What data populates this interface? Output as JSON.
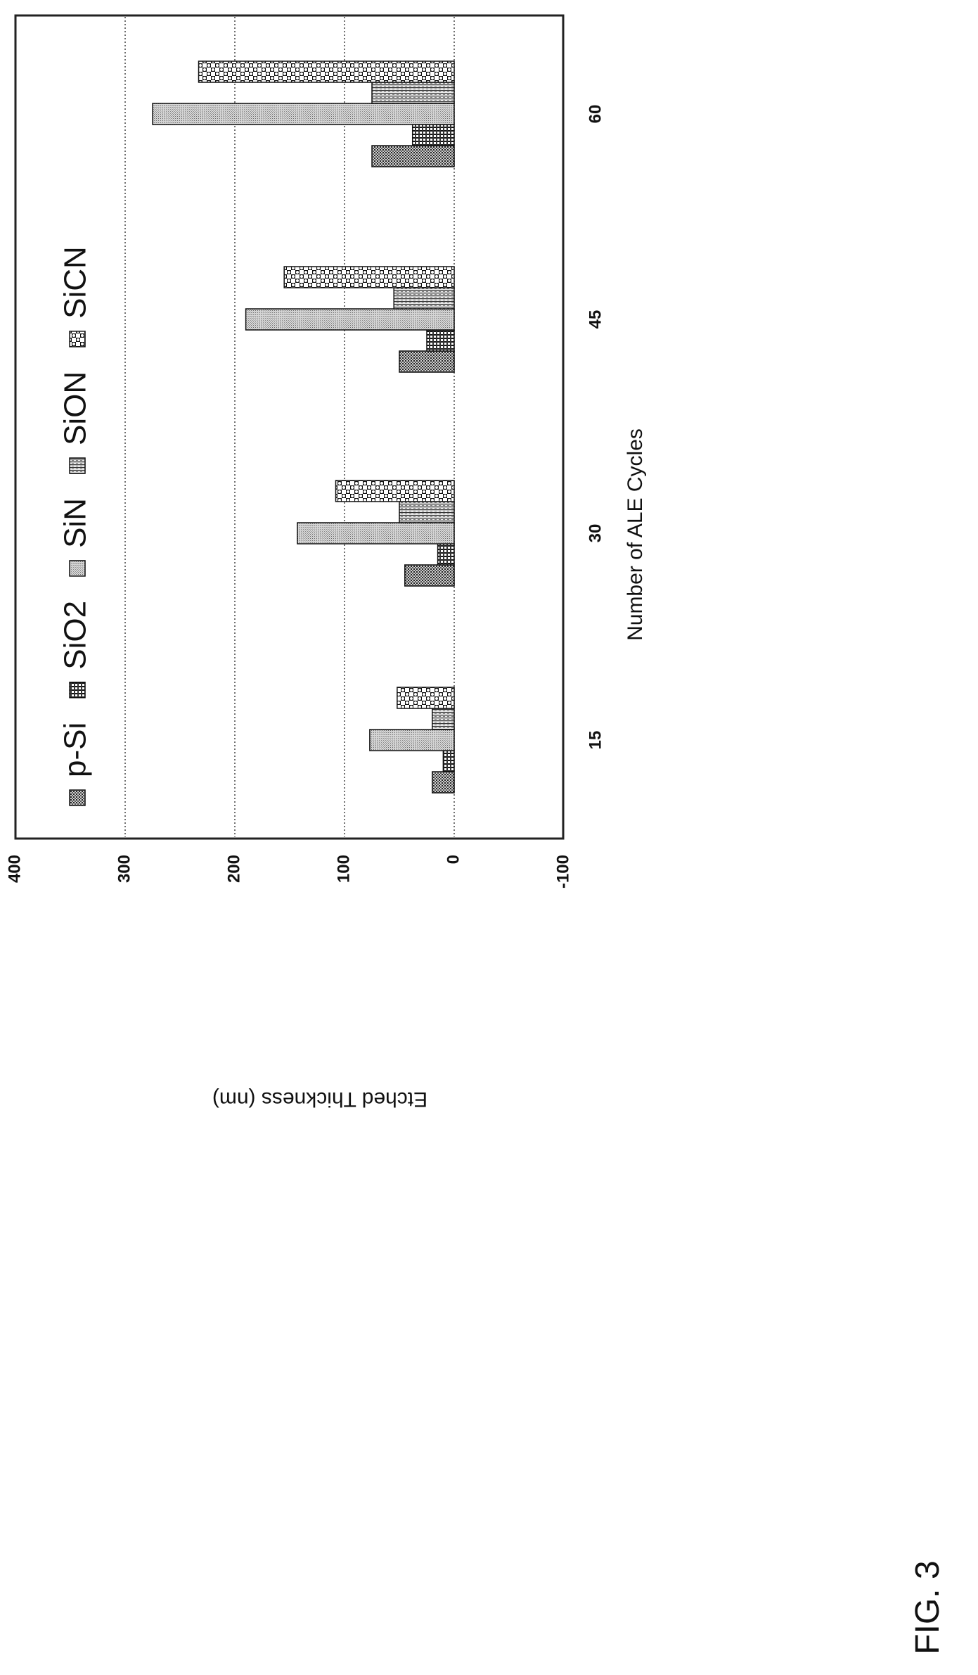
{
  "figure_label": "FIG. 3",
  "chart_data": {
    "type": "bar",
    "categories": [
      "15",
      "30",
      "45",
      "60"
    ],
    "series": [
      {
        "name": "p-Si",
        "values": [
          20,
          45,
          50,
          75
        ]
      },
      {
        "name": "SiO2",
        "values": [
          10,
          15,
          25,
          38
        ]
      },
      {
        "name": "SiN",
        "values": [
          77,
          143,
          190,
          275
        ]
      },
      {
        "name": "SiON",
        "values": [
          20,
          50,
          55,
          75
        ]
      },
      {
        "name": "SiCN",
        "values": [
          52,
          108,
          155,
          233
        ]
      }
    ],
    "xlabel": "Number of ALE Cycles",
    "ylabel": "Etched Thickness (nm)",
    "ylim": [
      -100,
      400
    ],
    "yticks": [
      "-100",
      "0",
      "100",
      "200",
      "300",
      "400"
    ],
    "grid": true,
    "legend": "top",
    "orientation": "rotated-90-ccw"
  }
}
